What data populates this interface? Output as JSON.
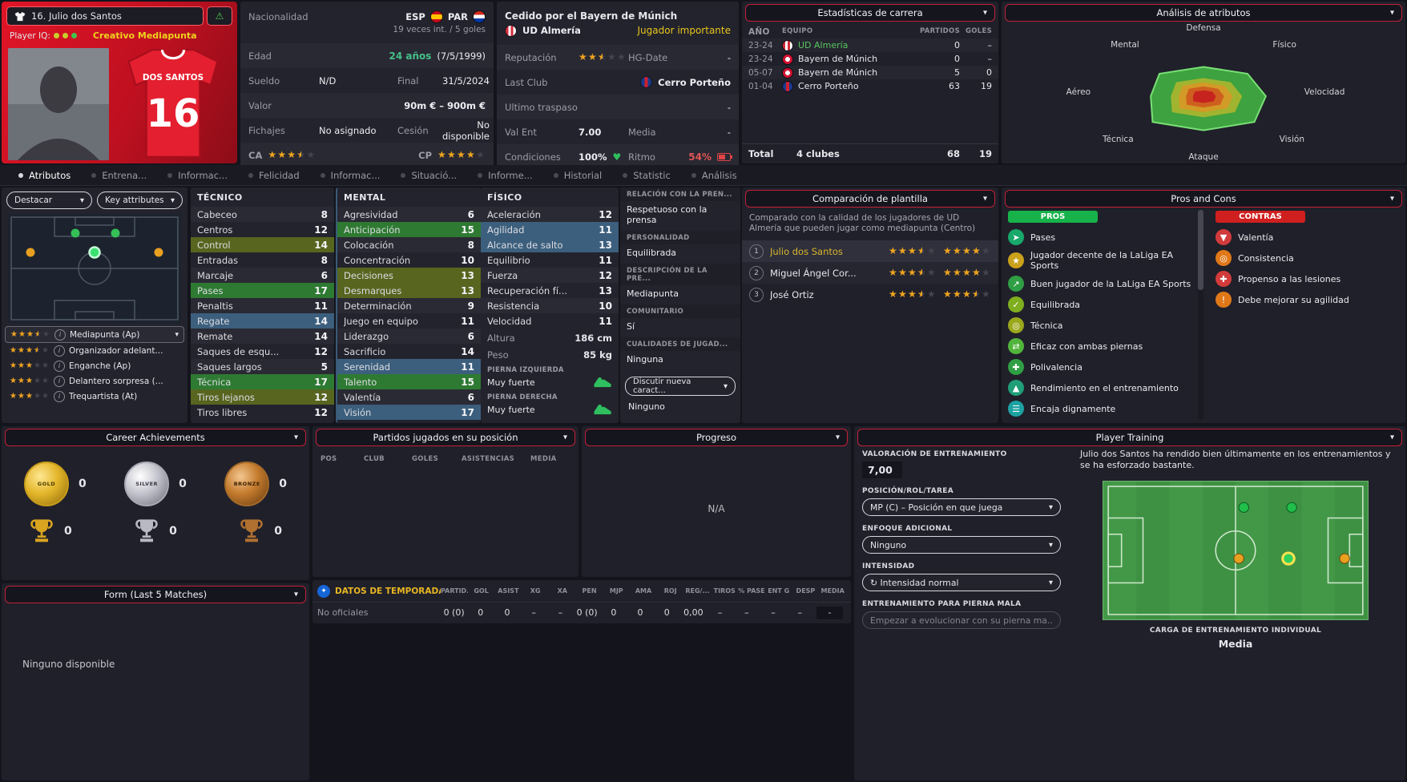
{
  "colors": {
    "accent_red": "#d4182e",
    "panel_border_red": "#c22038",
    "gold_star": "#f0a51d",
    "positive_green": "#3ec46d",
    "warning_yellow": "#e8c51c",
    "negative_red": "#e05555",
    "current_club_green": "#58c65e"
  },
  "icons": {
    "chevron": "▾",
    "warning": "⚠",
    "info": "i",
    "heart": "♥",
    "refresh": "↻",
    "star": "★",
    "season": "✦"
  },
  "player": {
    "title": "16. Julio dos Santos",
    "iq_label": "Player IQ:",
    "role": "Creativo  Mediapunta",
    "shirt_name": "DOS SANTOS",
    "shirt_number": "16"
  },
  "info": {
    "nationality_label": "Nacionalidad",
    "nat1": "ESP",
    "nat2": "PAR",
    "caps": "19 veces int. / 5 goles",
    "age_label": "Edad",
    "age_value": "24 años",
    "birth_date": "(7/5/1999)",
    "wage_label": "Sueldo",
    "wage_value": "N/D",
    "final_label": "Final",
    "final_value": "31/5/2024",
    "value_label": "Valor",
    "value_value": "90m € – 900m €",
    "transfer_label": "Fichajes",
    "transfer_value": "No asignado",
    "loan_label": "Cesión",
    "loan_value": "No disponible",
    "ca_label": "CA",
    "ca_stars": 3.5,
    "cp_label": "CP",
    "cp_stars": 4
  },
  "status": {
    "loan_header": "Cedido por el Bayern de Múnich",
    "club": "UD Almería",
    "importance": "Jugador importante",
    "reputation_label": "Reputación",
    "reputation_stars": 2.5,
    "hg_label": "HG-Date",
    "hg_value": "-",
    "last_club_label": "Last Club",
    "last_club": "Cerro Porteño",
    "last_transfer_label": "Ultimo traspaso",
    "last_transfer_value": "-",
    "val_ent_label": "Val Ent",
    "val_ent_value": "7.00",
    "media_label": "Media",
    "media_value": "-",
    "condition_label": "Condiciones",
    "condition_value": "100%",
    "sharpness_label": "Ritmo",
    "sharpness_value": "54%"
  },
  "career_stats": {
    "title": "Estadísticas de carrera",
    "columns": [
      "AÑO",
      "EQUIPO",
      "PARTIDOS",
      "GOLES"
    ],
    "rows": [
      {
        "year": "23-24",
        "team": "UD Almería",
        "apps": "0",
        "goals": "–",
        "badge": "b-almeria",
        "cls": "team-current"
      },
      {
        "year": "23-24",
        "team": "Bayern de Múnich",
        "apps": "0",
        "goals": "–",
        "badge": "b-bayern"
      },
      {
        "year": "05-07",
        "team": "Bayern de Múnich",
        "apps": "5",
        "goals": "0",
        "badge": "b-bayern"
      },
      {
        "year": "01-04",
        "team": "Cerro Porteño",
        "apps": "63",
        "goals": "19",
        "badge": "b-cerro"
      }
    ],
    "total_label": "Total",
    "total_clubs": "4 clubes",
    "total_apps": "68",
    "total_goals": "19"
  },
  "chart_data": {
    "type": "radar",
    "title": "Análisis de atributos",
    "axes": [
      "Defensa",
      "Físico",
      "Velocidad",
      "Visión",
      "Ataque",
      "Técnica",
      "Aéreo",
      "Mental"
    ],
    "values": [
      12,
      13,
      13,
      15,
      14,
      15,
      11,
      13
    ],
    "scale_max": 20,
    "band_colors": [
      "#3da23f",
      "#a0b430",
      "#d29a26",
      "#cf5f1e",
      "#c6231f"
    ]
  },
  "tabs": [
    {
      "label": "Atributos",
      "cls": "sel"
    },
    {
      "label": "Entrena..."
    },
    {
      "label": "Informac..."
    },
    {
      "label": "Felicidad"
    },
    {
      "label": "Informac..."
    },
    {
      "label": "Situació..."
    },
    {
      "label": "Informe..."
    },
    {
      "label": "Historial"
    },
    {
      "label": "Statistic"
    },
    {
      "label": "Análisis"
    }
  ],
  "left_panel": {
    "highlight_dropdown": "Destacar",
    "key_attributes_dropdown": "Key attributes",
    "positions": [
      {
        "stars": 3.5,
        "name": "Mediapunta (Ap)",
        "cls": "boxed"
      },
      {
        "stars": 3.5,
        "name": "Organizador adelant..."
      },
      {
        "stars": 3,
        "name": "Enganche (Ap)"
      },
      {
        "stars": 3,
        "name": "Delantero sorpresa (..."
      },
      {
        "stars": 3,
        "name": "Trequartista (At)"
      }
    ]
  },
  "attributes": {
    "tecnico": {
      "title": "TÉCNICO",
      "rows": [
        {
          "name": "Cabeceo",
          "value": 8
        },
        {
          "name": "Centros",
          "value": 12
        },
        {
          "name": "Control",
          "value": 14,
          "hl": "hl-olive"
        },
        {
          "name": "Entradas",
          "value": 8
        },
        {
          "name": "Marcaje",
          "value": 6
        },
        {
          "name": "Pases",
          "value": 17,
          "hl": "hl-green"
        },
        {
          "name": "Penaltis",
          "value": 11
        },
        {
          "name": "Regate",
          "value": 14,
          "hl": "hl-steel"
        },
        {
          "name": "Remate",
          "value": 14
        },
        {
          "name": "Saques de esqu...",
          "value": 12
        },
        {
          "name": "Saques largos",
          "value": 5
        },
        {
          "name": "Técnica",
          "value": 17,
          "hl": "hl-green"
        },
        {
          "name": "Tiros lejanos",
          "value": 12,
          "hl": "hl-olive"
        },
        {
          "name": "Tiros libres",
          "value": 12
        }
      ]
    },
    "mental": {
      "title": "MENTAL",
      "rows": [
        {
          "name": "Agresividad",
          "value": 6
        },
        {
          "name": "Anticipación",
          "value": 15,
          "hl": "hl-green"
        },
        {
          "name": "Colocación",
          "value": 8
        },
        {
          "name": "Concentración",
          "value": 10
        },
        {
          "name": "Decisiones",
          "value": 13,
          "hl": "hl-olive"
        },
        {
          "name": "Desmarques",
          "value": 13,
          "hl": "hl-olive"
        },
        {
          "name": "Determinación",
          "value": 9
        },
        {
          "name": "Juego en equipo",
          "value": 11
        },
        {
          "name": "Liderazgo",
          "value": 6
        },
        {
          "name": "Sacrificio",
          "value": 14
        },
        {
          "name": "Serenidad",
          "value": 11,
          "hl": "hl-steel"
        },
        {
          "name": "Talento",
          "value": 15,
          "hl": "hl-green"
        },
        {
          "name": "Valentía",
          "value": 6
        },
        {
          "name": "Visión",
          "value": 17,
          "hl": "hl-steel"
        }
      ]
    },
    "fisico": {
      "title": "FÍSICO",
      "rows": [
        {
          "name": "Aceleración",
          "value": 12
        },
        {
          "name": "Agilidad",
          "value": 11,
          "hl": "hl-steel"
        },
        {
          "name": "Alcance de salto",
          "value": 13,
          "hl": "hl-steel"
        },
        {
          "name": "Equilibrio",
          "value": 11
        },
        {
          "name": "Fuerza",
          "value": 12
        },
        {
          "name": "Recuperación fí...",
          "value": 13
        },
        {
          "name": "Resistencia",
          "value": 10
        },
        {
          "name": "Velocidad",
          "value": 11
        }
      ]
    },
    "altura_label": "Altura",
    "altura": "186 cm",
    "peso_label": "Peso",
    "peso": "85 kg",
    "left_foot_label": "PIERNA IZQUIERDA",
    "left_foot": "Muy fuerte",
    "right_foot_label": "PIERNA DERECHA",
    "right_foot": "Muy fuerte"
  },
  "press": {
    "rel_label": "RELACIÓN CON LA PREN...",
    "rel_value": "Respetuoso con la prensa",
    "pers_label": "PERSONALIDAD",
    "pers_value": "Equilibrada",
    "desc_label": "DESCRIPCIÓN DE LA PRE...",
    "desc_value": "Mediapunta",
    "com_label": "COMUNITARIO",
    "com_value": "Sí",
    "qual_label": "CUALIDADES DE JUGAD...",
    "qual_value": "Ninguna",
    "discuss_label": "Discutir nueva caract...",
    "discuss_value": "Ninguno"
  },
  "comparison": {
    "title": "Comparación de plantilla",
    "description": "Comparado con la calidad de los jugadores de UD Almería que pueden jugar como mediapunta (Centro)",
    "rows": [
      {
        "rank": "1",
        "name": "Julio dos Santos",
        "stars1": 3.5,
        "stars2": 4,
        "cls": "current"
      },
      {
        "rank": "2",
        "name": "Miguel Ángel Cor...",
        "stars1": 3.5,
        "stars2": 4
      },
      {
        "rank": "3",
        "name": "José Ortiz",
        "stars1": 3.5,
        "stars2": 3.5
      }
    ]
  },
  "pros_cons": {
    "title": "Pros and Cons",
    "pros_label": "PROS",
    "contras_label": "CONTRAS",
    "pros": [
      {
        "label": "Pases",
        "color": "#18a86b",
        "glyph": "➤"
      },
      {
        "label": "Jugador decente de la LaLiga EA Sports",
        "color": "#caa11b",
        "glyph": "★"
      },
      {
        "label": "Buen jugador de la LaLiga EA Sports",
        "color": "#2f9e44",
        "glyph": "↗"
      },
      {
        "label": "Equilibrada",
        "color": "#7fae1f",
        "glyph": "✓"
      },
      {
        "label": "Técnica",
        "color": "#9aa81c",
        "glyph": "◎"
      },
      {
        "label": "Eficaz con ambas piernas",
        "color": "#52b43c",
        "glyph": "⇄"
      },
      {
        "label": "Polivalencia",
        "color": "#2f9e44",
        "glyph": "✚"
      },
      {
        "label": "Rendimiento en el entrenamiento",
        "color": "#1f9e77",
        "glyph": "▲"
      },
      {
        "label": "Encaja dignamente",
        "color": "#1da2a2",
        "glyph": "☰"
      }
    ],
    "contras": [
      {
        "label": "Valentía",
        "color": "#d23b3b",
        "glyph": "▼"
      },
      {
        "label": "Consistencia",
        "color": "#e07818",
        "glyph": "◎"
      },
      {
        "label": "Propenso a las lesiones",
        "color": "#d23b3b",
        "glyph": "✚"
      },
      {
        "label": "Debe mejorar su agilidad",
        "color": "#e07818",
        "glyph": "!"
      }
    ]
  },
  "achievements": {
    "title": "Career Achievements",
    "medals": [
      {
        "tier": "GOLD",
        "count": "0",
        "cls": "m-gold"
      },
      {
        "tier": "SILVER",
        "count": "0",
        "cls": "m-silver"
      },
      {
        "tier": "BRONZE",
        "count": "0",
        "cls": "m-bronze"
      }
    ],
    "trophies": [
      {
        "count": "0",
        "cls": "t-gold"
      },
      {
        "count": "0",
        "cls": "t-silver"
      },
      {
        "count": "0",
        "cls": "t-bronze"
      }
    ]
  },
  "form": {
    "title": "Form (Last 5 Matches)",
    "empty": "Ninguno disponible"
  },
  "matches": {
    "title": "Partidos jugados en su posición",
    "columns": [
      "POS",
      "CLUB",
      "GOLES",
      "ASISTENCIAS",
      "MEDIA"
    ]
  },
  "progress": {
    "title": "Progreso",
    "empty": "N/A"
  },
  "season": {
    "label": "DATOS DE TEMPORADA >",
    "columns": [
      "PARTID...",
      "GOL",
      "ASIST",
      "XG",
      "XA",
      "PEN",
      "MJP",
      "AMA",
      "ROJ",
      "REG/...",
      "TIROS",
      "% PASE",
      "ENT G",
      "DESP",
      "MEDIA"
    ],
    "row_label": "No oficiales",
    "values": [
      "0 (0)",
      "0",
      "0",
      "–",
      "–",
      "0 (0)",
      "0",
      "0",
      "0",
      "0,00",
      "–",
      "–",
      "–",
      "–",
      "-"
    ]
  },
  "training": {
    "title": "Player Training",
    "rating_label": "VALORACIÓN DE ENTRENAMIENTO",
    "rating_value": "7,00",
    "description": "Julio dos Santos ha rendido bien últimamente en los entrenamientos y se ha esforzado bastante.",
    "position_label": "POSICIÓN/ROL/TAREA",
    "position_value": "MP (C) – Posición en que juega",
    "focus_label": "ENFOQUE ADICIONAL",
    "focus_value": "Ninguno",
    "intensity_label": "INTENSIDAD",
    "intensity_value": "Intensidad normal",
    "weak_foot_label": "ENTRENAMIENTO PARA PIERNA MALA",
    "weak_foot_value": "Empezar a evolucionar con su pierna ma...",
    "load_label": "CARGA DE ENTRENAMIENTO INDIVIDUAL",
    "load_value": "Media"
  }
}
